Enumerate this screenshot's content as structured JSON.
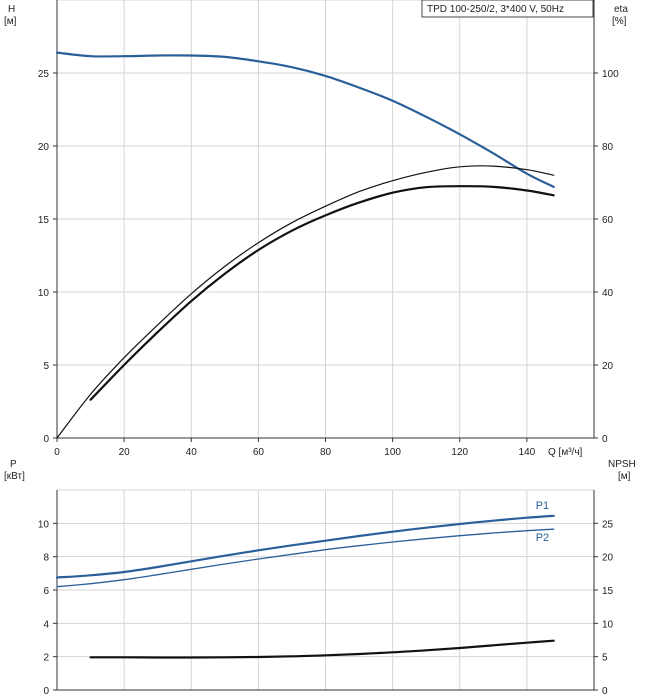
{
  "chart_data": [
    {
      "type": "line",
      "panel": "head-efficiency",
      "title": "TPD 100-250/2, 3*400 V, 50Hz",
      "xlabel": "Q [м³/ч]",
      "ylabel_left_1": "H",
      "ylabel_left_2": "[м]",
      "ylabel_right_1": "eta",
      "ylabel_right_2": "[%]",
      "xlim": [
        0,
        160
      ],
      "ylim_left": [
        0,
        30
      ],
      "ylim_right": [
        0,
        120
      ],
      "x_ticks": [
        0,
        20,
        40,
        60,
        80,
        100,
        120,
        140
      ],
      "y_ticks_left": [
        0,
        5,
        10,
        15,
        20,
        25
      ],
      "y_ticks_right": [
        0,
        20,
        40,
        60,
        80,
        100
      ],
      "grid": true,
      "series": [
        {
          "role": "head",
          "axis": "left",
          "color": "#2b5f99",
          "width": 2.2,
          "x": [
            0,
            10,
            20,
            30,
            40,
            50,
            60,
            70,
            80,
            90,
            100,
            110,
            120,
            130,
            140,
            148
          ],
          "y": [
            26.4,
            26.15,
            26.15,
            26.2,
            26.2,
            26.1,
            25.8,
            25.4,
            24.8,
            24.0,
            23.1,
            22.0,
            20.8,
            19.5,
            18.1,
            17.2
          ]
        },
        {
          "role": "efficiency-1",
          "axis": "right",
          "color": "#111111",
          "width": 1.2,
          "x": [
            0,
            10,
            20,
            30,
            40,
            50,
            60,
            70,
            80,
            90,
            100,
            110,
            120,
            130,
            140,
            148
          ],
          "y": [
            0,
            12,
            22,
            31,
            39.5,
            47,
            53.5,
            59,
            63.5,
            67.5,
            70.5,
            72.8,
            74.3,
            74.5,
            73.5,
            72
          ]
        },
        {
          "role": "efficiency-2",
          "axis": "right",
          "color": "#111111",
          "width": 2.2,
          "x": [
            10,
            20,
            30,
            40,
            50,
            60,
            70,
            80,
            90,
            100,
            110,
            120,
            130,
            140,
            148
          ],
          "y": [
            10.5,
            20,
            29,
            37.5,
            45,
            51.5,
            56.8,
            61,
            64.5,
            67.2,
            68.7,
            69,
            68.8,
            67.8,
            66.5
          ]
        }
      ]
    },
    {
      "type": "line",
      "panel": "power-npsh",
      "xlabel": "",
      "ylabel_left_1": "P",
      "ylabel_left_2": "[кВт]",
      "ylabel_right_1": "NPSH",
      "ylabel_right_2": "[м]",
      "xlim": [
        0,
        160
      ],
      "ylim_left": [
        0,
        12
      ],
      "ylim_right": [
        0,
        30
      ],
      "y_ticks_left": [
        0,
        2,
        4,
        6,
        8,
        10
      ],
      "y_ticks_right": [
        0,
        5,
        10,
        15,
        20,
        25
      ],
      "grid": true,
      "series": [
        {
          "name": "P1",
          "axis": "left",
          "color": "#2b5f99",
          "width": 2.2,
          "x": [
            0,
            10,
            20,
            30,
            40,
            50,
            60,
            70,
            80,
            90,
            100,
            110,
            120,
            130,
            140,
            148
          ],
          "y": [
            6.75,
            6.88,
            7.08,
            7.38,
            7.72,
            8.06,
            8.38,
            8.68,
            8.96,
            9.24,
            9.5,
            9.74,
            9.96,
            10.16,
            10.34,
            10.45
          ]
        },
        {
          "name": "P2",
          "axis": "left",
          "color": "#2b5f99",
          "width": 1.3,
          "x": [
            0,
            10,
            20,
            30,
            40,
            50,
            60,
            70,
            80,
            90,
            100,
            110,
            120,
            130,
            140,
            148
          ],
          "y": [
            6.2,
            6.38,
            6.62,
            6.92,
            7.24,
            7.56,
            7.86,
            8.14,
            8.42,
            8.66,
            8.88,
            9.08,
            9.26,
            9.42,
            9.56,
            9.65
          ]
        },
        {
          "role": "npsh",
          "axis": "right",
          "color": "#111111",
          "width": 2.2,
          "x": [
            10,
            20,
            30,
            40,
            50,
            60,
            70,
            80,
            90,
            100,
            110,
            120,
            130,
            140,
            148
          ],
          "y": [
            4.9,
            4.9,
            4.88,
            4.88,
            4.9,
            4.95,
            5.05,
            5.2,
            5.4,
            5.65,
            5.95,
            6.3,
            6.7,
            7.1,
            7.4
          ]
        }
      ]
    }
  ]
}
